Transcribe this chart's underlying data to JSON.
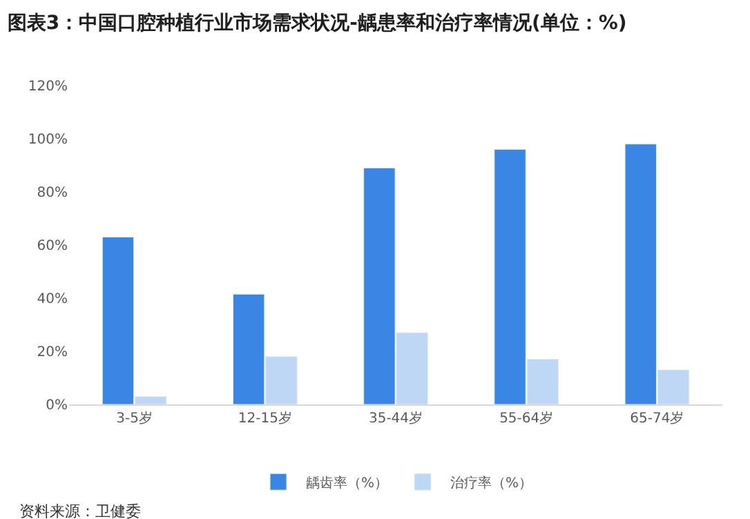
{
  "chart_data": {
    "type": "bar",
    "title": "图表3：中国口腔种植行业市场需求状况-龋患率和治疗率情况(单位：%)",
    "categories": [
      "3-5岁",
      "12-15岁",
      "35-44岁",
      "55-64岁",
      "65-74岁"
    ],
    "series": [
      {
        "name": "龋齿率（%）",
        "color": "#3a86e4",
        "values": [
          63,
          41.5,
          89,
          96,
          98
        ]
      },
      {
        "name": "治疗率（%）",
        "color": "#bdd7f5",
        "values": [
          3,
          18,
          27,
          17,
          13
        ]
      }
    ],
    "ylim": [
      0,
      120
    ],
    "yticks": [
      {
        "value": 0,
        "label": "0%"
      },
      {
        "value": 20,
        "label": "20%"
      },
      {
        "value": 40,
        "label": "40%"
      },
      {
        "value": 60,
        "label": "60%"
      },
      {
        "value": 80,
        "label": "80%"
      },
      {
        "value": 100,
        "label": "100%"
      },
      {
        "value": 120,
        "label": "120%"
      }
    ],
    "grid": false,
    "legend": "bottom",
    "annotations": [
      "资料来源：卫健委"
    ]
  }
}
